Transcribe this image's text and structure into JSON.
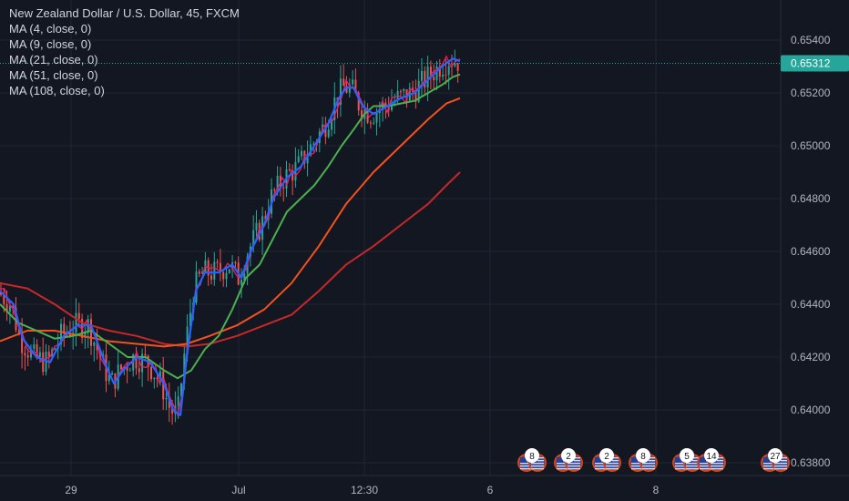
{
  "chart_data": {
    "type": "line",
    "title": "New Zealand Dollar / U.S. Dollar, 45, FXCM",
    "indicators": [
      {
        "label": "MA (4, close, 0)",
        "color": "#e91e63"
      },
      {
        "label": "MA (9, close, 0)",
        "color": "#2962ff"
      },
      {
        "label": "MA (21, close, 0)",
        "color": "#4caf50"
      },
      {
        "label": "MA (51, close, 0)",
        "color": "#f4511e"
      },
      {
        "label": "MA (108, close, 0)",
        "color": "#c62828"
      }
    ],
    "last_price": "0.65312",
    "ylim": [
      0.637,
      0.6553
    ],
    "y_ticks": [
      "0.65400",
      "0.65200",
      "0.65000",
      "0.64800",
      "0.64600",
      "0.64400",
      "0.64200",
      "0.64000",
      "0.63800"
    ],
    "x_ticks": [
      "29",
      "Jul",
      "12:30",
      "6",
      "8"
    ],
    "grid": true,
    "series": [
      {
        "name": "MA (9, close, 0)",
        "color": "#2962ff",
        "x": [
          0,
          15,
          25,
          40,
          55,
          70,
          85,
          100,
          115,
          125,
          135,
          150,
          165,
          180,
          190,
          198,
          205,
          215,
          225,
          240,
          255,
          265,
          275,
          290,
          300,
          315,
          330,
          345,
          360,
          372,
          380,
          388,
          398,
          410,
          425,
          440,
          455,
          470,
          485,
          497,
          505
        ],
        "y": [
          0.6445,
          0.644,
          0.6427,
          0.642,
          0.6418,
          0.6428,
          0.6432,
          0.6432,
          0.6418,
          0.641,
          0.6415,
          0.642,
          0.6418,
          0.641,
          0.64,
          0.6398,
          0.642,
          0.6445,
          0.6452,
          0.6452,
          0.6455,
          0.645,
          0.646,
          0.647,
          0.648,
          0.6488,
          0.6492,
          0.65,
          0.6508,
          0.6518,
          0.6522,
          0.6522,
          0.6515,
          0.6512,
          0.6515,
          0.6518,
          0.652,
          0.6525,
          0.653,
          0.6533,
          0.6532
        ]
      },
      {
        "name": "MA (21, close, 0)",
        "color": "#4caf50",
        "x": [
          0,
          20,
          40,
          60,
          80,
          100,
          120,
          140,
          160,
          180,
          195,
          210,
          225,
          240,
          255,
          270,
          285,
          300,
          315,
          330,
          345,
          360,
          375,
          390,
          400,
          410,
          425,
          440,
          455,
          470,
          485,
          497,
          505
        ],
        "y": [
          0.644,
          0.6433,
          0.643,
          0.6427,
          0.6428,
          0.643,
          0.6425,
          0.642,
          0.642,
          0.6415,
          0.6412,
          0.6415,
          0.6423,
          0.6428,
          0.6438,
          0.645,
          0.6455,
          0.6465,
          0.6475,
          0.648,
          0.6485,
          0.6492,
          0.65,
          0.6507,
          0.6512,
          0.6515,
          0.6515,
          0.6516,
          0.6517,
          0.652,
          0.6523,
          0.6526,
          0.6527
        ]
      },
      {
        "name": "MA (51, close, 0)",
        "color": "#f4511e",
        "x": [
          0,
          30,
          60,
          90,
          120,
          150,
          180,
          205,
          230,
          260,
          290,
          320,
          350,
          380,
          410,
          440,
          470,
          490,
          505
        ],
        "y": [
          0.6426,
          0.643,
          0.643,
          0.6428,
          0.6426,
          0.6425,
          0.6424,
          0.6425,
          0.6428,
          0.6432,
          0.6438,
          0.6448,
          0.6462,
          0.6478,
          0.649,
          0.65,
          0.651,
          0.6516,
          0.6518
        ]
      },
      {
        "name": "MA (108, close, 0)",
        "color": "#c62828",
        "x": [
          0,
          30,
          60,
          90,
          120,
          150,
          180,
          205,
          230,
          260,
          290,
          320,
          350,
          380,
          410,
          440,
          470,
          490,
          505
        ],
        "y": [
          0.6448,
          0.6446,
          0.644,
          0.6433,
          0.643,
          0.6428,
          0.6425,
          0.6424,
          0.6425,
          0.6428,
          0.6432,
          0.6436,
          0.6445,
          0.6455,
          0.6462,
          0.647,
          0.6478,
          0.6485,
          0.649
        ]
      }
    ]
  },
  "events": {
    "groups": [
      {
        "count": "8"
      },
      {
        "count": "2"
      },
      {
        "count": "2"
      },
      {
        "count": "8"
      },
      {
        "count": "5"
      },
      {
        "count": "14"
      },
      {
        "count": "27"
      }
    ]
  },
  "colors": {
    "background": "#131722",
    "grid": "#1f2433",
    "axis_text": "#b2b5be",
    "price_tag": "#26a69a",
    "bull": "#26a69a",
    "bear": "#ef5350"
  }
}
